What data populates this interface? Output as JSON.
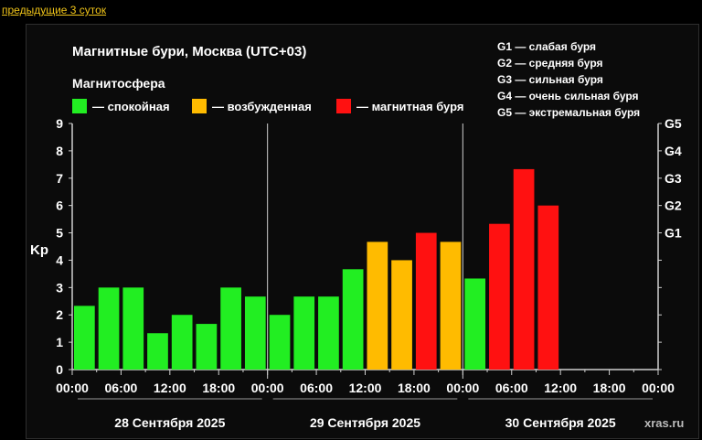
{
  "nav": {
    "prev_link": "предыдущие 3 суток"
  },
  "chart_data": {
    "type": "bar",
    "title": "Магнитные бури, Москва (UTC+03)",
    "subtitle": "Магнитосфера",
    "legend": [
      {
        "label": "— спокойная",
        "color": "#22ee22"
      },
      {
        "label": "— возбужденная",
        "color": "#ffbb00"
      },
      {
        "label": "— магнитная буря",
        "color": "#ff1111"
      }
    ],
    "g_legend": [
      "G1 — слабая буря",
      "G2 — средняя буря",
      "G3 — сильная буря",
      "G4 — очень сильная буря",
      "G5 — экстремальная буря"
    ],
    "ylabel": "Kp",
    "ylim": [
      0,
      9
    ],
    "y_ticks": [
      "0",
      "1",
      "2",
      "3",
      "4",
      "5",
      "6",
      "7",
      "8",
      "9"
    ],
    "g_ticks": [
      {
        "label": "G1",
        "value": 5
      },
      {
        "label": "G2",
        "value": 6
      },
      {
        "label": "G3",
        "value": 7
      },
      {
        "label": "G4",
        "value": 8
      },
      {
        "label": "G5",
        "value": 9
      }
    ],
    "x_ticks": [
      "00:00",
      "06:00",
      "12:00",
      "18:00",
      "00:00",
      "06:00",
      "12:00",
      "18:00",
      "00:00",
      "06:00",
      "12:00",
      "18:00",
      "00:00"
    ],
    "days": [
      "28 Сентября 2025",
      "29 Сентября 2025",
      "30 Сентября 2025"
    ],
    "values": [
      {
        "kp": 2.33,
        "level": "quiet"
      },
      {
        "kp": 3.0,
        "level": "quiet"
      },
      {
        "kp": 3.0,
        "level": "quiet"
      },
      {
        "kp": 1.33,
        "level": "quiet"
      },
      {
        "kp": 2.0,
        "level": "quiet"
      },
      {
        "kp": 1.67,
        "level": "quiet"
      },
      {
        "kp": 3.0,
        "level": "quiet"
      },
      {
        "kp": 2.67,
        "level": "quiet"
      },
      {
        "kp": 2.0,
        "level": "quiet"
      },
      {
        "kp": 2.67,
        "level": "quiet"
      },
      {
        "kp": 2.67,
        "level": "quiet"
      },
      {
        "kp": 3.67,
        "level": "quiet"
      },
      {
        "kp": 4.67,
        "level": "active"
      },
      {
        "kp": 4.0,
        "level": "active"
      },
      {
        "kp": 5.0,
        "level": "storm"
      },
      {
        "kp": 4.67,
        "level": "active"
      },
      {
        "kp": 3.33,
        "level": "quiet"
      },
      {
        "kp": 5.33,
        "level": "storm"
      },
      {
        "kp": 7.33,
        "level": "storm"
      },
      {
        "kp": 6.0,
        "level": "storm"
      }
    ],
    "colors": {
      "quiet": "#22ee22",
      "active": "#ffbb00",
      "storm": "#ff1111"
    },
    "credit": "xras.ru"
  }
}
